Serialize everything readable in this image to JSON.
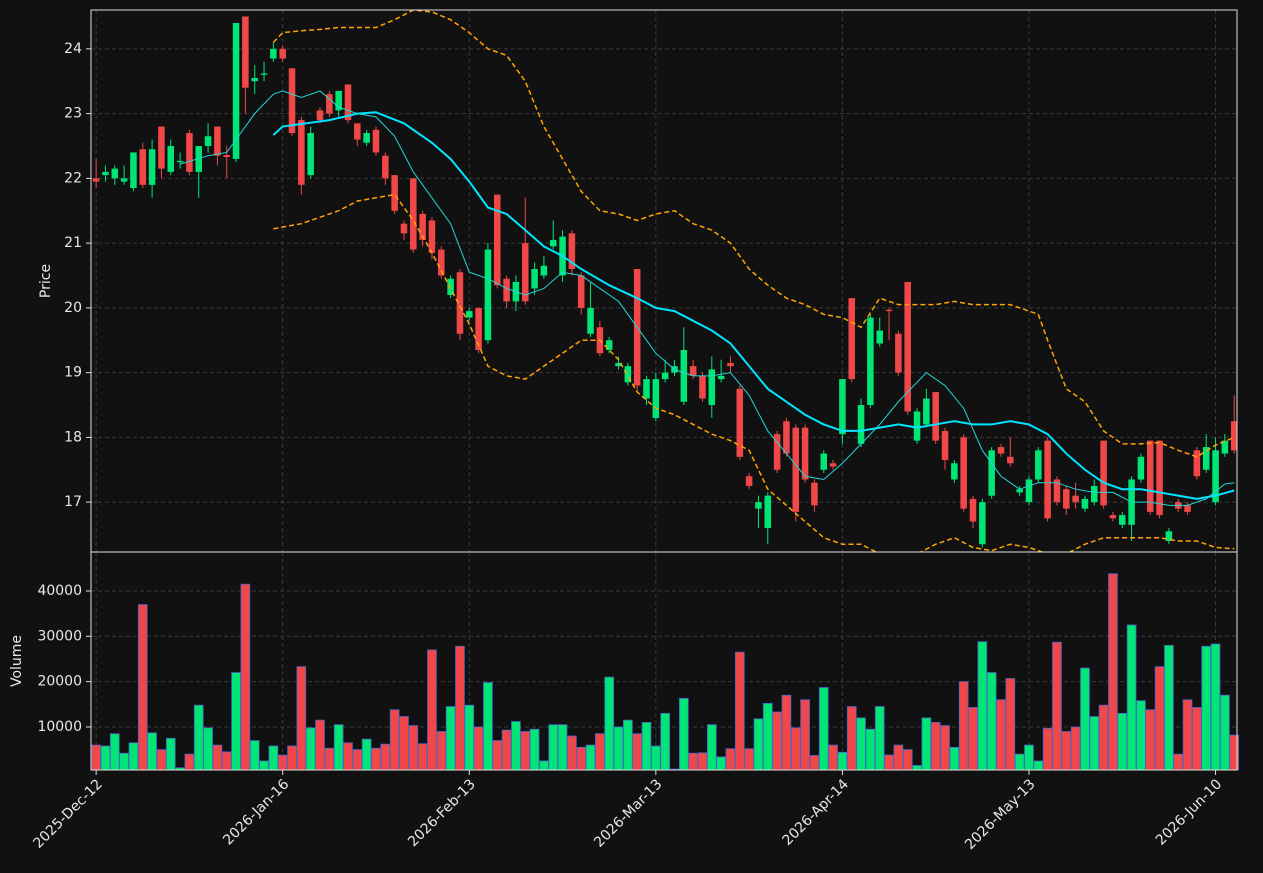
{
  "chart_data": [
    {
      "type": "candlestick",
      "ylabel": "Price",
      "grid": true,
      "xlim": [
        -0.55,
        122.3
      ],
      "ylim": [
        16.23,
        24.6
      ],
      "yticks": [
        17,
        18,
        19,
        20,
        21,
        22,
        23,
        24
      ],
      "up_color": "#00e676",
      "down_color": "#f04848",
      "open": [
        22.0,
        22.05,
        22.0,
        21.95,
        21.85,
        22.45,
        21.9,
        22.8,
        22.1,
        22.25,
        22.7,
        22.1,
        22.5,
        22.8,
        22.36,
        22.3,
        24.5,
        23.5,
        23.6,
        23.85,
        24.0,
        23.7,
        22.9,
        22.05,
        23.05,
        23.3,
        23.05,
        23.45,
        22.85,
        22.55,
        22.75,
        22.35,
        22.05,
        21.3,
        22.0,
        21.45,
        21.35,
        20.9,
        20.2,
        20.55,
        19.85,
        20.0,
        19.5,
        21.75,
        20.45,
        20.1,
        21.0,
        20.3,
        20.5,
        20.95,
        20.5,
        21.15,
        20.5,
        19.6,
        19.7,
        19.35,
        19.1,
        18.85,
        20.6,
        18.6,
        18.3,
        18.9,
        19.0,
        18.55,
        19.1,
        18.95,
        18.5,
        18.9,
        19.15,
        18.75,
        17.4,
        16.9,
        16.6,
        18.05,
        18.25,
        18.15,
        18.15,
        17.3,
        17.5,
        17.6,
        18.05,
        20.15,
        17.9,
        18.5,
        19.45,
        19.97,
        19.6,
        20.4,
        17.95,
        18.2,
        18.7,
        18.1,
        17.35,
        18.0,
        17.05,
        16.35,
        17.1,
        17.85,
        17.7,
        17.15,
        17.0,
        17.35,
        17.95,
        17.35,
        17.2,
        17.1,
        16.9,
        17.0,
        17.95,
        16.8,
        16.65,
        16.65,
        17.35,
        17.95,
        17.95,
        16.4,
        17.0,
        16.95,
        17.8,
        17.5,
        17.0,
        17.75,
        18.25
      ],
      "high": [
        22.3,
        22.2,
        22.2,
        22.2,
        22.4,
        22.55,
        22.6,
        22.8,
        22.6,
        22.4,
        22.75,
        22.5,
        22.85,
        22.8,
        22.5,
        24.4,
        24.5,
        23.75,
        23.8,
        24.1,
        24.05,
        23.7,
        22.95,
        22.8,
        23.1,
        23.35,
        23.35,
        23.45,
        22.85,
        22.75,
        22.8,
        22.4,
        22.05,
        21.35,
        22.0,
        21.5,
        21.4,
        20.95,
        20.5,
        20.6,
        20.0,
        20.0,
        21.0,
        21.75,
        20.5,
        20.5,
        21.7,
        20.7,
        20.8,
        21.35,
        21.2,
        21.2,
        20.55,
        20.4,
        19.8,
        19.55,
        19.25,
        19.15,
        20.6,
        18.95,
        19.0,
        19.2,
        19.2,
        19.7,
        19.2,
        19.0,
        19.25,
        19.2,
        19.25,
        18.8,
        17.45,
        17.1,
        17.15,
        18.1,
        18.3,
        18.2,
        18.2,
        17.35,
        17.8,
        17.65,
        18.9,
        20.15,
        18.6,
        19.9,
        19.85,
        20.0,
        19.65,
        20.4,
        18.45,
        18.75,
        18.7,
        18.15,
        17.65,
        18.05,
        17.1,
        17.05,
        17.85,
        17.9,
        18.0,
        17.25,
        17.4,
        17.85,
        18.0,
        17.4,
        17.25,
        17.3,
        17.1,
        17.35,
        17.95,
        16.85,
        16.85,
        17.4,
        17.75,
        17.95,
        17.95,
        16.6,
        17.05,
        17.0,
        17.85,
        18.05,
        18.0,
        18.05,
        18.65
      ],
      "low": [
        21.85,
        21.95,
        21.9,
        21.9,
        21.8,
        21.85,
        21.7,
        22.0,
        22.05,
        22.15,
        22.05,
        21.7,
        22.4,
        22.2,
        22.0,
        22.25,
        23.0,
        23.3,
        23.5,
        23.8,
        23.8,
        22.65,
        21.75,
        22.0,
        22.85,
        22.95,
        22.95,
        22.85,
        22.5,
        22.5,
        22.35,
        21.9,
        21.45,
        21.05,
        20.85,
        20.95,
        20.75,
        20.45,
        20.15,
        19.5,
        19.8,
        19.3,
        19.45,
        20.3,
        20.0,
        19.95,
        20.05,
        20.2,
        20.45,
        20.9,
        20.4,
        20.5,
        19.9,
        19.55,
        19.25,
        19.3,
        19.05,
        18.8,
        18.7,
        18.5,
        18.25,
        18.85,
        18.95,
        18.5,
        18.9,
        18.55,
        18.3,
        18.85,
        19.0,
        17.65,
        17.2,
        16.6,
        16.35,
        17.45,
        17.7,
        16.7,
        17.3,
        16.85,
        17.45,
        17.5,
        17.9,
        18.85,
        17.85,
        18.45,
        19.4,
        19.5,
        18.95,
        18.35,
        17.9,
        18.15,
        17.9,
        17.5,
        17.3,
        16.85,
        16.6,
        16.3,
        17.05,
        17.7,
        17.55,
        17.1,
        16.95,
        17.3,
        16.7,
        16.95,
        16.8,
        16.9,
        16.85,
        16.95,
        16.9,
        16.7,
        16.6,
        16.4,
        17.3,
        16.8,
        16.75,
        16.35,
        16.85,
        16.8,
        17.35,
        17.45,
        16.95,
        17.7,
        17.75
      ],
      "close": [
        21.95,
        22.1,
        22.15,
        22.0,
        22.4,
        21.9,
        22.45,
        22.15,
        22.5,
        22.27,
        22.1,
        22.5,
        22.65,
        22.35,
        22.33,
        24.4,
        23.4,
        23.55,
        23.62,
        24.0,
        23.85,
        22.7,
        21.9,
        22.7,
        22.9,
        23.0,
        23.35,
        22.9,
        22.6,
        22.7,
        22.4,
        22.0,
        21.5,
        21.15,
        20.9,
        21.05,
        20.85,
        20.5,
        20.45,
        19.6,
        19.95,
        19.35,
        20.9,
        20.35,
        20.1,
        20.4,
        20.1,
        20.6,
        20.65,
        21.05,
        21.1,
        20.6,
        20.0,
        20.0,
        19.3,
        19.5,
        19.15,
        19.1,
        18.8,
        18.9,
        18.9,
        19.0,
        19.1,
        19.35,
        18.95,
        18.6,
        19.05,
        18.95,
        19.1,
        17.7,
        17.25,
        17.0,
        17.1,
        17.5,
        17.75,
        16.85,
        17.35,
        16.95,
        17.75,
        17.55,
        18.9,
        18.9,
        18.5,
        19.85,
        19.65,
        19.95,
        19.0,
        18.4,
        18.4,
        18.6,
        17.95,
        17.65,
        17.6,
        16.9,
        16.7,
        17.0,
        17.8,
        17.75,
        17.6,
        17.2,
        17.35,
        17.8,
        16.75,
        17.0,
        16.9,
        17.0,
        17.05,
        17.25,
        16.95,
        16.75,
        16.8,
        17.35,
        17.7,
        16.85,
        16.8,
        16.55,
        16.9,
        16.85,
        17.4,
        17.85,
        17.8,
        17.95,
        17.8
      ],
      "lines": [
        {
          "color": "#00e5ff",
          "width": 2,
          "dash": false,
          "x": [
            19,
            20,
            25,
            28,
            30,
            33,
            36,
            38,
            40,
            42,
            44,
            46,
            48,
            50,
            52,
            55,
            58,
            60,
            62,
            64,
            66,
            68,
            70,
            72,
            74,
            76,
            78,
            80,
            82,
            84,
            86,
            88,
            90,
            92,
            94,
            96,
            98,
            100,
            102,
            104,
            106,
            108,
            110,
            112,
            114,
            116,
            118,
            120,
            122
          ],
          "values": [
            22.67,
            22.8,
            22.9,
            23.0,
            23.02,
            22.85,
            22.55,
            22.3,
            21.95,
            21.55,
            21.45,
            21.2,
            20.95,
            20.8,
            20.6,
            20.35,
            20.15,
            20.0,
            19.95,
            19.8,
            19.65,
            19.45,
            19.1,
            18.75,
            18.55,
            18.35,
            18.2,
            18.1,
            18.1,
            18.15,
            18.2,
            18.15,
            18.2,
            18.25,
            18.2,
            18.2,
            18.25,
            18.2,
            18.05,
            17.75,
            17.5,
            17.3,
            17.2,
            17.2,
            17.15,
            17.1,
            17.05,
            17.1,
            17.18
          ]
        },
        {
          "color": "#20d8d8",
          "width": 1,
          "dash": false,
          "x": [
            9,
            12,
            14,
            15,
            17,
            19,
            20,
            22,
            24,
            26,
            28,
            30,
            32,
            34,
            36,
            38,
            40,
            42,
            44,
            46,
            48,
            50,
            52,
            54,
            56,
            58,
            60,
            62,
            64,
            66,
            68,
            70,
            72,
            74,
            76,
            78,
            80,
            82,
            84,
            86,
            88,
            89,
            91,
            93,
            95,
            97,
            99,
            101,
            103,
            105,
            107,
            109,
            111,
            113,
            115,
            117,
            119,
            121,
            122
          ],
          "values": [
            22.22,
            22.35,
            22.4,
            22.6,
            23.0,
            23.3,
            23.35,
            23.25,
            23.35,
            23.1,
            23.0,
            22.95,
            22.65,
            22.1,
            21.7,
            21.3,
            20.55,
            20.45,
            20.3,
            20.2,
            20.3,
            20.55,
            20.5,
            20.3,
            20.1,
            19.7,
            19.3,
            19.05,
            18.95,
            18.95,
            19.0,
            18.65,
            18.1,
            17.75,
            17.4,
            17.35,
            17.6,
            17.9,
            18.2,
            18.55,
            18.85,
            19.0,
            18.8,
            18.45,
            17.8,
            17.4,
            17.2,
            17.3,
            17.3,
            17.2,
            17.15,
            17.15,
            17.0,
            17.0,
            16.95,
            16.95,
            17.05,
            17.28,
            17.3
          ]
        },
        {
          "color": "#ffa500",
          "width": 1.5,
          "dash": true,
          "x": [
            19,
            20,
            22,
            24,
            26,
            30,
            32,
            34,
            36,
            38,
            40,
            42,
            44,
            46,
            48,
            50,
            52,
            54,
            56,
            58,
            60,
            62,
            64,
            66,
            68,
            70,
            72,
            74,
            76,
            78,
            80,
            82,
            84,
            86,
            88,
            90,
            92,
            94,
            96,
            98,
            100,
            101,
            102,
            104,
            106,
            108,
            110,
            112,
            114,
            116,
            118,
            120,
            122
          ],
          "values": [
            24.1,
            24.25,
            24.28,
            24.3,
            24.33,
            24.33,
            24.45,
            24.6,
            24.57,
            24.45,
            24.25,
            24.0,
            23.9,
            23.5,
            22.8,
            22.3,
            21.8,
            21.5,
            21.45,
            21.35,
            21.45,
            21.5,
            21.3,
            21.2,
            21.0,
            20.6,
            20.35,
            20.15,
            20.05,
            19.9,
            19.85,
            19.7,
            20.15,
            20.05,
            20.05,
            20.05,
            20.1,
            20.05,
            20.05,
            20.05,
            19.95,
            19.9,
            19.5,
            18.75,
            18.55,
            18.1,
            17.9,
            17.9,
            17.92,
            17.8,
            17.7,
            17.88,
            18.0
          ]
        },
        {
          "color": "#ffa500",
          "width": 1.5,
          "dash": true,
          "x": [
            19,
            20,
            22,
            24,
            26,
            28,
            30,
            32,
            34,
            36,
            38,
            40,
            42,
            44,
            46,
            48,
            50,
            52,
            54,
            56,
            58,
            60,
            62,
            64,
            66,
            68,
            70,
            72,
            74,
            76,
            78,
            80,
            82,
            84,
            86,
            88,
            90,
            92,
            94,
            96,
            98,
            100,
            102,
            104,
            106,
            108,
            110,
            112,
            114,
            116,
            118,
            120,
            122
          ],
          "values": [
            21.22,
            21.25,
            21.3,
            21.4,
            21.5,
            21.65,
            21.7,
            21.75,
            21.35,
            20.85,
            20.3,
            19.75,
            19.1,
            18.95,
            18.9,
            19.1,
            19.3,
            19.5,
            19.5,
            19.2,
            18.7,
            18.45,
            18.35,
            18.2,
            18.05,
            17.95,
            17.8,
            17.2,
            16.95,
            16.7,
            16.45,
            16.35,
            16.35,
            16.2,
            16.2,
            16.2,
            16.35,
            16.45,
            16.3,
            16.25,
            16.35,
            16.3,
            16.2,
            16.2,
            16.35,
            16.45,
            16.45,
            16.45,
            16.45,
            16.4,
            16.4,
            16.3,
            16.28
          ]
        }
      ]
    },
    {
      "type": "volume",
      "ylabel": "Volume",
      "grid": true,
      "edge_color": "#4a64c8",
      "xlim": [
        -0.55,
        122.3
      ],
      "ylim": [
        500,
        48600
      ],
      "yticks": [
        10000,
        20000,
        30000,
        40000
      ],
      "xticks": [
        {
          "value": 0,
          "label": "2025-Dec-12"
        },
        {
          "value": 20,
          "label": "2026-Jan-16"
        },
        {
          "value": 40,
          "label": "2026-Feb-13"
        },
        {
          "value": 60,
          "label": "2026-Mar-13"
        },
        {
          "value": 80,
          "label": "2026-Apr-14"
        },
        {
          "value": 100,
          "label": "2026-May-13"
        },
        {
          "value": 120,
          "label": "2026-Jun-10"
        }
      ],
      "values": [
        6000,
        5800,
        8500,
        4200,
        6500,
        37000,
        8700,
        5000,
        7500,
        1000,
        4000,
        14800,
        9800,
        6000,
        4500,
        22000,
        41500,
        7000,
        2500,
        5800,
        3800,
        5800,
        23300,
        9800,
        11500,
        5300,
        10500,
        6500,
        5000,
        7300,
        5300,
        6200,
        13800,
        12300,
        10300,
        6300,
        27000,
        9000,
        14500,
        27800,
        14800,
        10000,
        19800,
        7000,
        9300,
        11200,
        9000,
        9500,
        2500,
        10500,
        10500,
        8000,
        5500,
        6000,
        8500,
        21000,
        10000,
        11500,
        8500,
        11000,
        5800,
        13000,
        700,
        16300,
        4200,
        4300,
        10500,
        3400,
        5200,
        26500,
        5200,
        11800,
        15200,
        13300,
        17000,
        9800,
        16000,
        3700,
        18700,
        6000,
        4400,
        14500,
        12000,
        9500,
        14500,
        3800,
        6000,
        5000,
        1500,
        12000,
        11000,
        10300,
        5500,
        20000,
        14300,
        28800,
        22000,
        16000,
        20700,
        4000,
        6000,
        2500,
        9700,
        28700,
        9000,
        10000,
        23000,
        12300,
        14800,
        43800,
        13000,
        32500,
        15800,
        13800,
        23300,
        28000,
        4000,
        16000,
        14300,
        27800,
        28300,
        17000,
        8200
      ]
    }
  ]
}
